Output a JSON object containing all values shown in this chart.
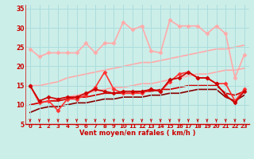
{
  "xlabel": "Vent moyen/en rafales ( km/h )",
  "xlim": [
    -0.5,
    23.5
  ],
  "ylim": [
    5,
    36
  ],
  "yticks": [
    5,
    10,
    15,
    20,
    25,
    30,
    35
  ],
  "xticks": [
    0,
    1,
    2,
    3,
    4,
    5,
    6,
    7,
    8,
    9,
    10,
    11,
    12,
    13,
    14,
    15,
    16,
    17,
    18,
    19,
    20,
    21,
    22,
    23
  ],
  "bg_color": "#cceee8",
  "grid_color": "#aadddd",
  "lines": [
    {
      "x": [
        0,
        1,
        2,
        3,
        4,
        5,
        6,
        7,
        8,
        9,
        10,
        11,
        12,
        13,
        14,
        15,
        16,
        17,
        18,
        19,
        20,
        21,
        22,
        23
      ],
      "y": [
        24.5,
        22.5,
        23.5,
        23.5,
        23.5,
        23.5,
        26,
        23.5,
        26,
        26,
        31.5,
        29.5,
        30.5,
        24,
        23.5,
        32,
        30.5,
        30.5,
        30.5,
        28.5,
        30.5,
        28.5,
        17,
        23
      ],
      "color": "#ffaaaa",
      "lw": 1.2,
      "marker": "D",
      "ms": 2.5
    },
    {
      "x": [
        0,
        1,
        2,
        3,
        4,
        5,
        6,
        7,
        8,
        9,
        10,
        11,
        12,
        13,
        14,
        15,
        16,
        17,
        18,
        19,
        20,
        21,
        22,
        23
      ],
      "y": [
        15,
        15,
        15.5,
        16,
        17,
        17.5,
        18,
        18.5,
        19,
        19.5,
        20,
        20.5,
        21,
        21,
        21.5,
        22,
        22.5,
        23,
        23.5,
        24,
        24.5,
        24.5,
        25,
        25.5
      ],
      "color": "#ffaaaa",
      "lw": 1.2,
      "marker": null,
      "ms": 0
    },
    {
      "x": [
        0,
        1,
        2,
        3,
        4,
        5,
        6,
        7,
        8,
        9,
        10,
        11,
        12,
        13,
        14,
        15,
        16,
        17,
        18,
        19,
        20,
        21,
        22,
        23
      ],
      "y": [
        10,
        10.5,
        11,
        11.5,
        12,
        12.5,
        13,
        13.5,
        14,
        14.5,
        14.5,
        15,
        15.5,
        15.5,
        16,
        16.5,
        17,
        17.5,
        18,
        18,
        18.5,
        19,
        19,
        19.5
      ],
      "color": "#ffaaaa",
      "lw": 1.2,
      "marker": null,
      "ms": 0
    },
    {
      "x": [
        0,
        1,
        2,
        3,
        4,
        5,
        6,
        7,
        8,
        9,
        10,
        11,
        12,
        13,
        14,
        15,
        16,
        17,
        18,
        19,
        20,
        21,
        22,
        23
      ],
      "y": [
        15,
        10.5,
        11,
        8.5,
        11.5,
        11.5,
        12.5,
        14.5,
        18.5,
        14,
        13,
        13,
        13,
        14,
        13.5,
        16,
        18,
        18.5,
        17,
        17,
        15.5,
        15.5,
        11,
        14
      ],
      "color": "#ff3333",
      "lw": 1.2,
      "marker": "D",
      "ms": 2.5
    },
    {
      "x": [
        0,
        1,
        2,
        3,
        4,
        5,
        6,
        7,
        8,
        9,
        10,
        11,
        12,
        13,
        14,
        15,
        16,
        17,
        18,
        19,
        20,
        21,
        22,
        23
      ],
      "y": [
        15,
        11,
        12,
        11.5,
        12,
        12,
        13,
        14,
        13.5,
        13,
        13.5,
        13.5,
        13.5,
        14,
        13.5,
        16.5,
        17,
        18.5,
        17,
        17,
        15.5,
        12.5,
        10.5,
        13.5
      ],
      "color": "#cc0000",
      "lw": 1.2,
      "marker": "D",
      "ms": 2.5
    },
    {
      "x": [
        0,
        1,
        2,
        3,
        4,
        5,
        6,
        7,
        8,
        9,
        10,
        11,
        12,
        13,
        14,
        15,
        16,
        17,
        18,
        19,
        20,
        21,
        22,
        23
      ],
      "y": [
        10,
        10.5,
        11,
        11,
        11.5,
        12,
        12,
        12.5,
        13,
        13,
        13,
        13,
        13.5,
        13.5,
        14,
        14,
        14.5,
        15,
        15,
        15,
        15,
        13,
        12.5,
        13.5
      ],
      "color": "#cc0000",
      "lw": 1.2,
      "marker": null,
      "ms": 0
    },
    {
      "x": [
        0,
        1,
        2,
        3,
        4,
        5,
        6,
        7,
        8,
        9,
        10,
        11,
        12,
        13,
        14,
        15,
        16,
        17,
        18,
        19,
        20,
        21,
        22,
        23
      ],
      "y": [
        8,
        9,
        9.5,
        9.5,
        10,
        10.5,
        10.5,
        11,
        11.5,
        11.5,
        12,
        12,
        12,
        12.5,
        12.5,
        13,
        13,
        13.5,
        14,
        14,
        14,
        12,
        11,
        12.5
      ],
      "color": "#880000",
      "lw": 1.2,
      "marker": null,
      "ms": 0
    }
  ],
  "arrow_color": "#cc0000",
  "tick_label_color": "#cc0000",
  "xlabel_color": "#cc0000",
  "ylabel_color": "#cc0000"
}
